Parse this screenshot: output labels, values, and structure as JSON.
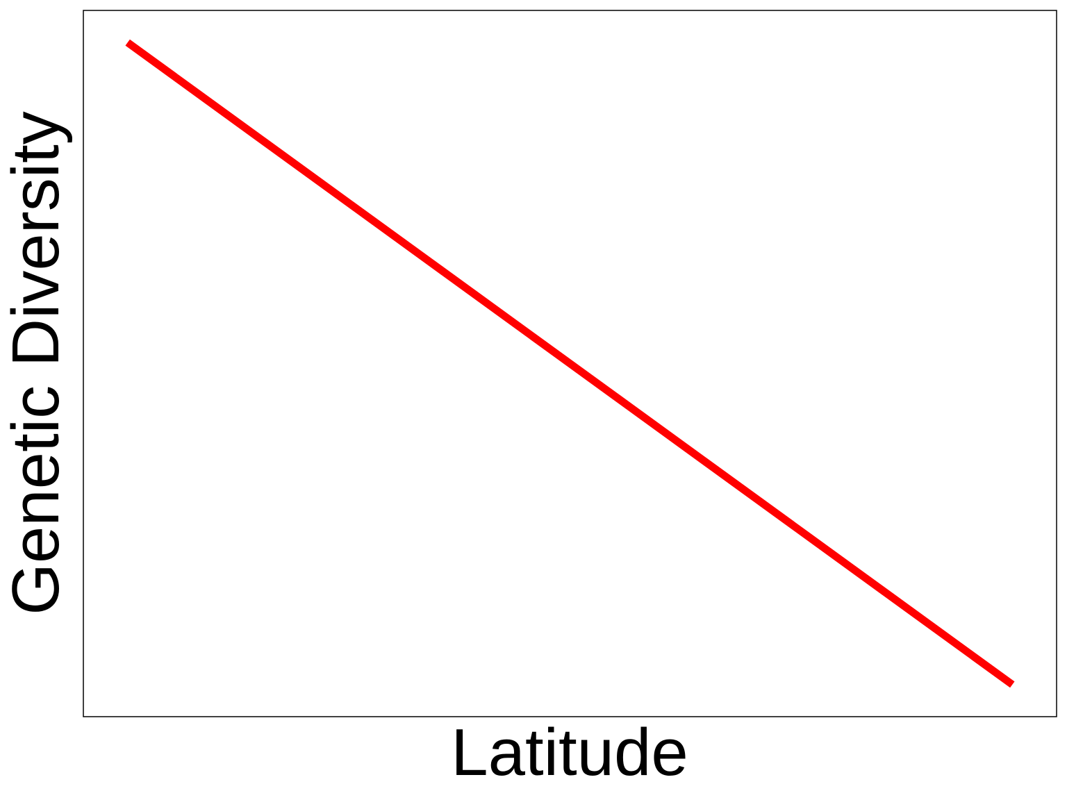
{
  "chart_data": {
    "type": "line",
    "title": "",
    "xlabel": "Latitude",
    "ylabel": "Genetic Diversity",
    "xlim": [
      0,
      1.1
    ],
    "ylim": [
      -0.05,
      1.05
    ],
    "grid": false,
    "legend": "none",
    "series": [
      {
        "x": [
          0.05,
          1.05
        ],
        "y": [
          1.0,
          0.0
        ],
        "color": "#ff0000"
      }
    ]
  }
}
